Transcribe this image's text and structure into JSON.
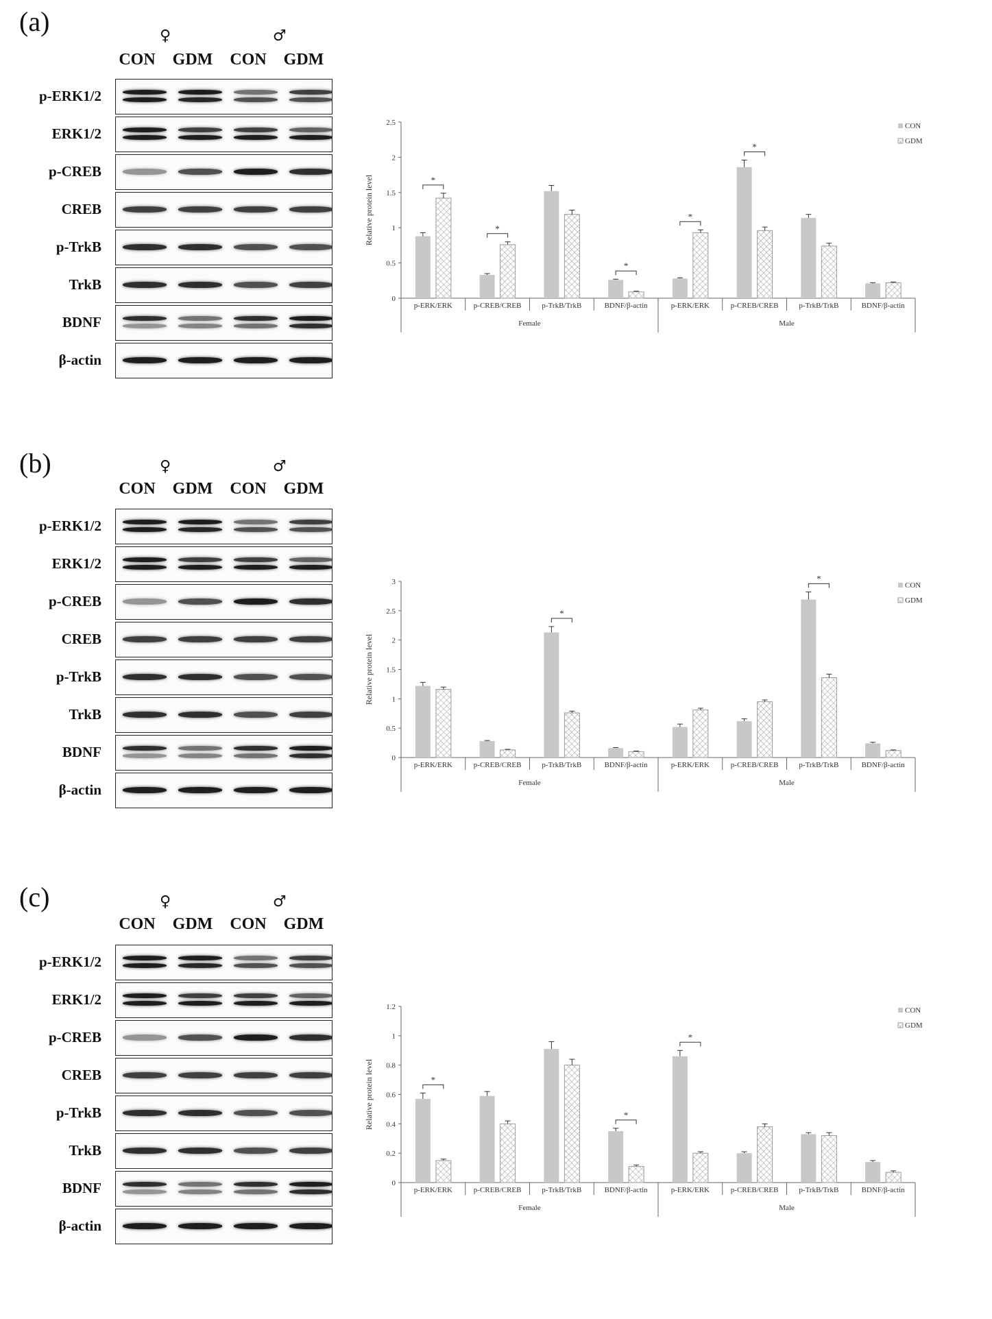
{
  "panels": [
    {
      "label": "(a)",
      "symbols": {
        "female": "♀",
        "male": "♂"
      },
      "lanes": [
        "CON",
        "GDM",
        "CON",
        "GDM"
      ],
      "blot_rows": [
        "p-ERK1/2",
        "ERK1/2",
        "p-CREB",
        "CREB",
        "p-TrkB",
        "TrkB",
        "BDNF",
        "β-actin"
      ]
    },
    {
      "label": "(b)",
      "symbols": {
        "female": "♀",
        "male": "♂"
      },
      "lanes": [
        "CON",
        "GDM",
        "CON",
        "GDM"
      ],
      "blot_rows": [
        "p-ERK1/2",
        "ERK1/2",
        "p-CREB",
        "CREB",
        "p-TrkB",
        "TrkB",
        "BDNF",
        "β-actin"
      ]
    },
    {
      "label": "(c)",
      "symbols": {
        "female": "♀",
        "male": "♂"
      },
      "lanes": [
        "CON",
        "GDM",
        "CON",
        "GDM"
      ],
      "blot_rows": [
        "p-ERK1/2",
        "ERK1/2",
        "p-CREB",
        "CREB",
        "p-TrkB",
        "TrkB",
        "BDNF",
        "β-actin"
      ]
    }
  ],
  "chart_data": [
    {
      "type": "bar",
      "ylabel": "Relative protein level",
      "ylim": [
        0,
        2.5
      ],
      "yticks": [
        "0",
        "0.5",
        "1",
        "1.5",
        "2",
        "2.5"
      ],
      "categories": [
        "p-ERK/ERK",
        "p-CREB/CREB",
        "p-TrkB/TrkB",
        "BDNF/β-actin",
        "p-ERK/ERK",
        "p-CREB/CREB",
        "p-TrkB/TrkB",
        "BDNF/β-actin"
      ],
      "groups": [
        "Female",
        "Male"
      ],
      "series": [
        {
          "name": "CON",
          "values": [
            0.88,
            0.33,
            1.52,
            0.26,
            0.28,
            1.86,
            1.14,
            0.21
          ],
          "errors": [
            0.05,
            0.02,
            0.08,
            0.01,
            0.01,
            0.1,
            0.05,
            0.01
          ]
        },
        {
          "name": "GDM",
          "values": [
            1.42,
            0.76,
            1.19,
            0.09,
            0.93,
            0.96,
            0.74,
            0.22
          ],
          "errors": [
            0.07,
            0.04,
            0.06,
            0.01,
            0.04,
            0.05,
            0.04,
            0.01
          ]
        }
      ],
      "significant": [
        0,
        1,
        3,
        4,
        5
      ],
      "sig_mark": "*",
      "legend": "top-right",
      "colors": {
        "CON": "#c8c8c8",
        "GDM": "#ffffff"
      }
    },
    {
      "type": "bar",
      "ylabel": "Relative protein level",
      "ylim": [
        0,
        3
      ],
      "yticks": [
        "0",
        "0.5",
        "1",
        "1.5",
        "2",
        "2.5",
        "3"
      ],
      "categories": [
        "p-ERK/ERK",
        "p-CREB/CREB",
        "p-TrkB/TrkB",
        "BDNF/β-actin",
        "p-ERK/ERK",
        "p-CREB/CREB",
        "p-TrkB/TrkB",
        "BDNF/β-actin"
      ],
      "groups": [
        "Female",
        "Male"
      ],
      "series": [
        {
          "name": "CON",
          "values": [
            1.22,
            0.28,
            2.13,
            0.16,
            0.52,
            0.62,
            2.69,
            0.24
          ],
          "errors": [
            0.06,
            0.01,
            0.1,
            0.01,
            0.05,
            0.04,
            0.13,
            0.02
          ]
        },
        {
          "name": "GDM",
          "values": [
            1.16,
            0.13,
            0.76,
            0.1,
            0.81,
            0.95,
            1.36,
            0.12
          ],
          "errors": [
            0.04,
            0.01,
            0.03,
            0.01,
            0.03,
            0.03,
            0.06,
            0.01
          ]
        }
      ],
      "significant": [
        2,
        6
      ],
      "sig_mark": "*",
      "legend": "top-right",
      "colors": {
        "CON": "#c8c8c8",
        "GDM": "#ffffff"
      }
    },
    {
      "type": "bar",
      "ylabel": "Relative protein level",
      "ylim": [
        0,
        1.2
      ],
      "yticks": [
        "0",
        "0.2",
        "0.4",
        "0.6",
        "0.8",
        "1",
        "1.2"
      ],
      "categories": [
        "p-ERK/ERK",
        "p-CREB/CREB",
        "p-TrkB/TrkB",
        "BDNF/β-actin",
        "p-ERK/ERK",
        "p-CREB/CREB",
        "p-TrkB/TrkB",
        "BDNF/β-actin"
      ],
      "groups": [
        "Female",
        "Male"
      ],
      "series": [
        {
          "name": "CON",
          "values": [
            0.57,
            0.59,
            0.91,
            0.35,
            0.86,
            0.2,
            0.33,
            0.14
          ],
          "errors": [
            0.04,
            0.03,
            0.05,
            0.02,
            0.04,
            0.01,
            0.01,
            0.01
          ]
        },
        {
          "name": "GDM",
          "values": [
            0.15,
            0.4,
            0.8,
            0.11,
            0.2,
            0.38,
            0.32,
            0.07
          ],
          "errors": [
            0.01,
            0.02,
            0.04,
            0.01,
            0.01,
            0.02,
            0.02,
            0.01
          ]
        }
      ],
      "significant": [
        0,
        3,
        4
      ],
      "sig_mark": "*",
      "legend": "top-right",
      "colors": {
        "CON": "#c8c8c8",
        "GDM": "#ffffff"
      }
    }
  ]
}
